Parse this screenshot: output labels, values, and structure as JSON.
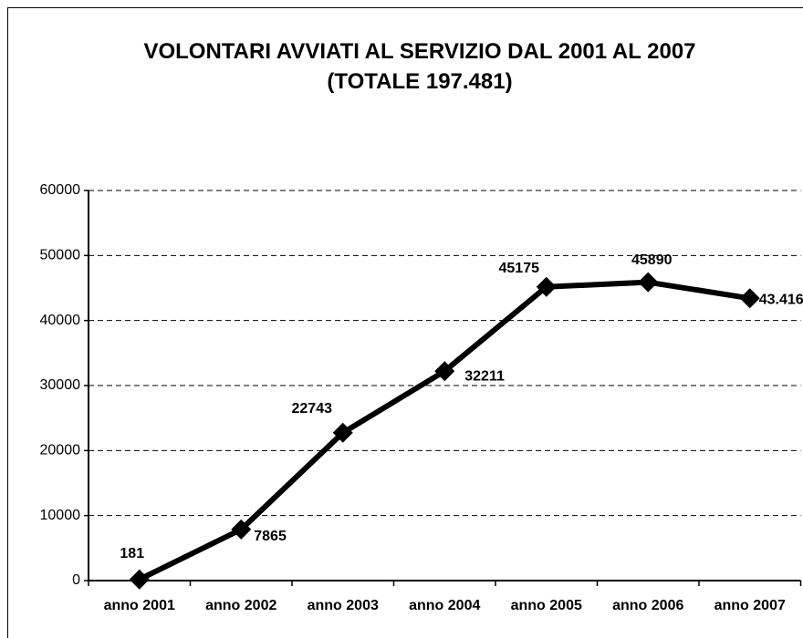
{
  "chart_data": {
    "type": "line",
    "title": "VOLONTARI AVVIATI AL SERVIZIO DAL 2001 AL 2007",
    "subtitle": "(TOTALE 197.481)",
    "categories": [
      "anno 2001",
      "anno 2002",
      "anno 2003",
      "anno 2004",
      "anno 2005",
      "anno 2006",
      "anno 2007"
    ],
    "values": [
      181,
      7865,
      22743,
      32211,
      45175,
      45890,
      43416
    ],
    "value_labels": [
      "181",
      "7865",
      "22743",
      "32211",
      "45175",
      "45890",
      "43.416"
    ],
    "color": "#000000",
    "ylim": [
      0,
      60000
    ],
    "yticks": [
      0,
      10000,
      20000,
      30000,
      40000,
      50000,
      60000
    ],
    "grid": true
  }
}
